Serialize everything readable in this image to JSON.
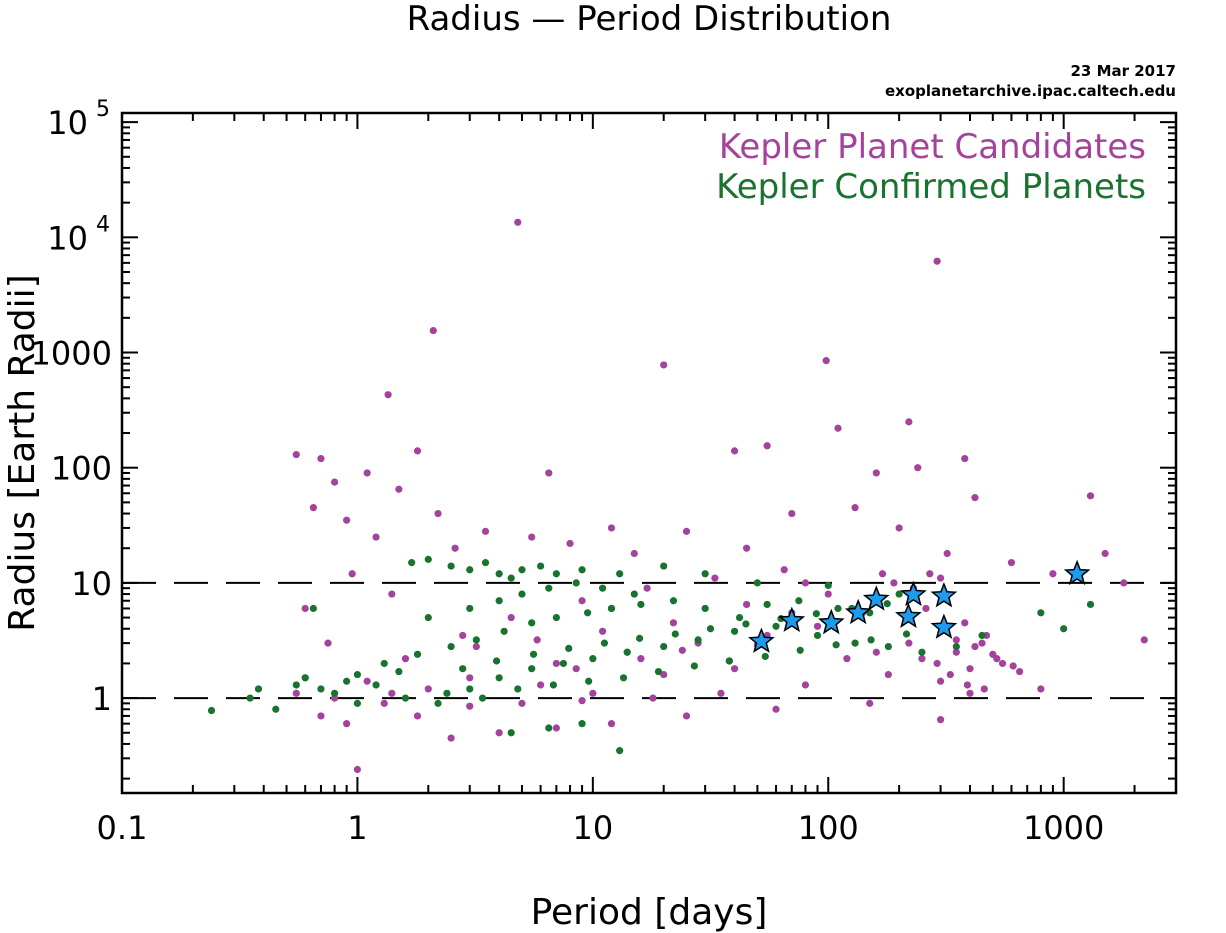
{
  "chart_data": {
    "type": "scatter",
    "title": "Radius — Period Distribution",
    "date": "23 Mar 2017",
    "source": "exoplanetarchive.ipac.caltech.edu",
    "xlabel": "Period [days]",
    "ylabel": "Radius [Earth Radii]",
    "x_scale": "log",
    "y_scale": "log",
    "xlim": [
      0.1,
      3000
    ],
    "ylim": [
      0.15,
      120000
    ],
    "x_ticks": [
      {
        "value": 0.1,
        "label": "0.1"
      },
      {
        "value": 1,
        "label": "1"
      },
      {
        "value": 10,
        "label": "10"
      },
      {
        "value": 100,
        "label": "100"
      },
      {
        "value": 1000,
        "label": "1000"
      }
    ],
    "y_ticks": [
      {
        "value": 1,
        "label": "1"
      },
      {
        "value": 10,
        "label": "10"
      },
      {
        "value": 100,
        "label": "100"
      },
      {
        "value": 1000,
        "label": "1000"
      },
      {
        "value": 10000,
        "label": "10",
        "exp": "4"
      },
      {
        "value": 100000,
        "label": "10",
        "exp": "5"
      }
    ],
    "reference_lines": [
      1,
      10
    ],
    "legend_position": "top-right",
    "series": [
      {
        "name": "Kepler Planet Candidates",
        "color": "#a5429b",
        "marker": "circle",
        "points": [
          [
            4.8,
            13500
          ],
          [
            290,
            6200
          ],
          [
            2.1,
            1550
          ],
          [
            20,
            780
          ],
          [
            98,
            850
          ],
          [
            1.35,
            430
          ],
          [
            220,
            250
          ],
          [
            0.55,
            130
          ],
          [
            0.7,
            120
          ],
          [
            1.8,
            140
          ],
          [
            1.1,
            90
          ],
          [
            6.5,
            90
          ],
          [
            40,
            140
          ],
          [
            55,
            155
          ],
          [
            110,
            220
          ],
          [
            160,
            90
          ],
          [
            240,
            100
          ],
          [
            380,
            120
          ],
          [
            1300,
            57
          ],
          [
            0.8,
            75
          ],
          [
            1.5,
            65
          ],
          [
            2.2,
            40
          ],
          [
            0.9,
            35
          ],
          [
            3.5,
            28
          ],
          [
            5.5,
            25
          ],
          [
            12,
            30
          ],
          [
            25,
            28
          ],
          [
            70,
            40
          ],
          [
            130,
            45
          ],
          [
            420,
            55
          ],
          [
            900,
            12
          ],
          [
            1500,
            18
          ],
          [
            2200,
            3.2
          ],
          [
            0.65,
            45
          ],
          [
            1.2,
            25
          ],
          [
            2.6,
            20
          ],
          [
            8,
            22
          ],
          [
            15,
            18
          ],
          [
            45,
            20
          ],
          [
            200,
            30
          ],
          [
            320,
            18
          ],
          [
            600,
            15
          ],
          [
            1800,
            10
          ],
          [
            0.6,
            6
          ],
          [
            0.75,
            3
          ],
          [
            0.95,
            12
          ],
          [
            1.4,
            8
          ],
          [
            1,
            0.24
          ],
          [
            300,
            0.65
          ],
          [
            2.5,
            0.45
          ],
          [
            4,
            0.5
          ],
          [
            7,
            0.55
          ],
          [
            12,
            0.6
          ],
          [
            25,
            0.7
          ],
          [
            60,
            0.8
          ],
          [
            150,
            0.9
          ],
          [
            400,
            1.1
          ],
          [
            800,
            1.2
          ],
          [
            0.55,
            1.1
          ],
          [
            0.7,
            0.7
          ],
          [
            0.9,
            0.6
          ],
          [
            1.3,
            0.9
          ],
          [
            1.8,
            0.7
          ],
          [
            3,
            0.85
          ],
          [
            5,
            0.9
          ],
          [
            9,
            0.95
          ],
          [
            18,
            1.0
          ],
          [
            35,
            1.1
          ],
          [
            80,
            1.3
          ],
          [
            180,
            1.6
          ],
          [
            250,
            2.2
          ],
          [
            350,
            2.5
          ],
          [
            450,
            3.0
          ],
          [
            550,
            2.0
          ],
          [
            650,
            1.7
          ],
          [
            300,
            1.4
          ],
          [
            400,
            1.8
          ],
          [
            500,
            2.4
          ],
          [
            220,
            3.0
          ],
          [
            160,
            2.5
          ],
          [
            120,
            2.2
          ],
          [
            2,
            1.2
          ],
          [
            3,
            1.5
          ],
          [
            6,
            1.3
          ],
          [
            10,
            1.1
          ],
          [
            20,
            1.6
          ],
          [
            40,
            1.8
          ],
          [
            7,
            2.0
          ],
          [
            14,
            2.5
          ],
          [
            28,
            3.0
          ],
          [
            55,
            3.5
          ],
          [
            90,
            4.2
          ],
          [
            140,
            5.5
          ],
          [
            260,
            6.0
          ],
          [
            380,
            4.5
          ],
          [
            470,
            3.5
          ],
          [
            1.6,
            2.2
          ],
          [
            2.8,
            3.5
          ],
          [
            4.5,
            5.0
          ],
          [
            9,
            7.0
          ],
          [
            17,
            9.0
          ],
          [
            33,
            11
          ],
          [
            65,
            13
          ],
          [
            100,
            8.0
          ],
          [
            190,
            10
          ],
          [
            300,
            11
          ],
          [
            170,
            12
          ],
          [
            230,
            9.0
          ],
          [
            270,
            12
          ],
          [
            80,
            10
          ],
          [
            12,
            6.0
          ],
          [
            22,
            4.5
          ],
          [
            45,
            6.5
          ],
          [
            70,
            5.5
          ],
          [
            350,
            3.2
          ],
          [
            420,
            2.8
          ],
          [
            520,
            2.2
          ],
          [
            610,
            1.9
          ],
          [
            290,
            2.0
          ],
          [
            330,
            1.6
          ],
          [
            390,
            1.3
          ],
          [
            460,
            1.2
          ],
          [
            3.2,
            2.8
          ],
          [
            5.8,
            3.2
          ],
          [
            8.5,
            1.8
          ],
          [
            11,
            3.8
          ],
          [
            16,
            2.2
          ],
          [
            24,
            2.6
          ],
          [
            38,
            2.1
          ],
          [
            50,
            2.9
          ],
          [
            0.6,
            1.5
          ],
          [
            0.8,
            1.0
          ],
          [
            1.1,
            1.4
          ],
          [
            1.4,
            1.1
          ]
        ]
      },
      {
        "name": "Kepler Confirmed Planets",
        "color": "#18732f",
        "marker": "circle",
        "points": [
          [
            0.24,
            0.78
          ],
          [
            0.35,
            1.0
          ],
          [
            0.38,
            1.2
          ],
          [
            0.45,
            0.8
          ],
          [
            0.55,
            1.3
          ],
          [
            0.6,
            1.5
          ],
          [
            0.7,
            1.2
          ],
          [
            0.8,
            1.1
          ],
          [
            0.9,
            1.4
          ],
          [
            1.0,
            1.6
          ],
          [
            1.2,
            1.3
          ],
          [
            1.5,
            1.7
          ],
          [
            1.7,
            15
          ],
          [
            2.0,
            16
          ],
          [
            2.5,
            14
          ],
          [
            3.0,
            13
          ],
          [
            3.5,
            15
          ],
          [
            4.0,
            12
          ],
          [
            4.5,
            11
          ],
          [
            5.0,
            13
          ],
          [
            6.0,
            14
          ],
          [
            7.0,
            12
          ],
          [
            9.0,
            13
          ],
          [
            13,
            12
          ],
          [
            20,
            14
          ],
          [
            30,
            12
          ],
          [
            50,
            10
          ],
          [
            100,
            9.5
          ],
          [
            200,
            8.0
          ],
          [
            13,
            0.35
          ],
          [
            4.5,
            0.5
          ],
          [
            6.5,
            0.55
          ],
          [
            9.0,
            0.6
          ],
          [
            2.2,
            0.9
          ],
          [
            3.0,
            1.2
          ],
          [
            4.0,
            1.5
          ],
          [
            5.5,
            1.8
          ],
          [
            7.5,
            2.0
          ],
          [
            10,
            2.2
          ],
          [
            14,
            2.5
          ],
          [
            20,
            2.8
          ],
          [
            28,
            3.2
          ],
          [
            40,
            3.8
          ],
          [
            60,
            4.2
          ],
          [
            90,
            3.5
          ],
          [
            130,
            3.0
          ],
          [
            180,
            2.8
          ],
          [
            250,
            2.5
          ],
          [
            350,
            2.8
          ],
          [
            450,
            3.5
          ],
          [
            800,
            5.5
          ],
          [
            1000,
            4.0
          ],
          [
            1300,
            6.5
          ],
          [
            1.3,
            2.0
          ],
          [
            1.8,
            2.4
          ],
          [
            2.5,
            2.8
          ],
          [
            3.2,
            3.2
          ],
          [
            4.2,
            3.8
          ],
          [
            5.5,
            4.5
          ],
          [
            7.0,
            5.0
          ],
          [
            9.5,
            5.5
          ],
          [
            12,
            6.0
          ],
          [
            16,
            6.5
          ],
          [
            22,
            7.0
          ],
          [
            30,
            6.0
          ],
          [
            42,
            5.0
          ],
          [
            55,
            6.5
          ],
          [
            75,
            7.0
          ],
          [
            110,
            6.0
          ],
          [
            150,
            5.5
          ],
          [
            2.0,
            5.0
          ],
          [
            3.0,
            6.0
          ],
          [
            4.0,
            7.0
          ],
          [
            5.0,
            8.0
          ],
          [
            6.5,
            9.0
          ],
          [
            8.5,
            10
          ],
          [
            11,
            9.0
          ],
          [
            15,
            8.0
          ],
          [
            0.65,
            6.0
          ],
          [
            1.0,
            0.9
          ],
          [
            1.6,
            1.0
          ],
          [
            2.4,
            1.1
          ],
          [
            3.4,
            1.0
          ],
          [
            4.8,
            1.2
          ],
          [
            6.8,
            1.3
          ],
          [
            9.6,
            1.4
          ],
          [
            13.5,
            1.5
          ],
          [
            19,
            1.7
          ],
          [
            27,
            1.9
          ],
          [
            38,
            2.1
          ],
          [
            54,
            2.3
          ],
          [
            76,
            2.6
          ],
          [
            108,
            2.9
          ],
          [
            152,
            3.2
          ],
          [
            215,
            3.6
          ],
          [
            305,
            4.0
          ],
          [
            2.8,
            1.8
          ],
          [
            3.9,
            2.1
          ],
          [
            5.6,
            2.4
          ],
          [
            7.9,
            2.7
          ],
          [
            11.2,
            3.0
          ],
          [
            15.8,
            3.3
          ],
          [
            22.4,
            3.6
          ],
          [
            31.6,
            4.0
          ],
          [
            44.7,
            4.4
          ],
          [
            63,
            4.9
          ],
          [
            89,
            5.4
          ],
          [
            126,
            6.0
          ],
          [
            178,
            6.6
          ]
        ]
      },
      {
        "name": "",
        "color": "#1e9bea",
        "marker": "star",
        "points": [
          [
            52,
            3.1
          ],
          [
            70,
            4.7
          ],
          [
            103,
            4.5
          ],
          [
            134,
            5.5
          ],
          [
            160,
            7.2
          ],
          [
            219,
            5.1
          ],
          [
            230,
            7.9
          ],
          [
            310,
            4.1
          ],
          [
            310,
            7.7
          ],
          [
            1140,
            12
          ]
        ]
      }
    ]
  }
}
